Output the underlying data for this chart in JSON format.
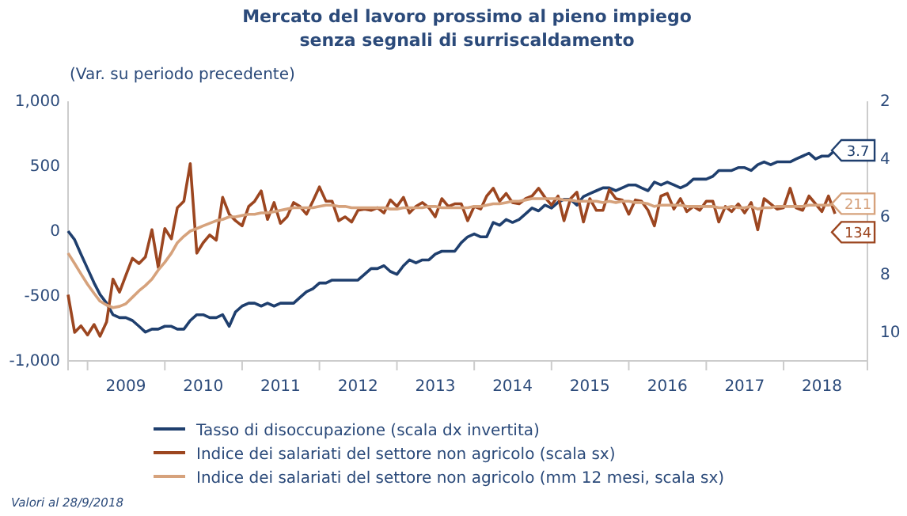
{
  "chart_data": {
    "type": "line",
    "title": "Mercato del lavoro prossimo al pieno impiego\nsenza segnali di surriscaldamento",
    "subtitle": "(Var. su periodo precedente)",
    "annotations": [
      "Valori al 28/9/2018"
    ],
    "xlim": [
      "2008-10",
      "2019-02"
    ],
    "xticks": [
      {
        "value": "2009-01",
        "label": null
      },
      {
        "value": "2009-07",
        "label": "2009"
      },
      {
        "value": "2010-01",
        "label": null
      },
      {
        "value": "2010-07",
        "label": "2010"
      },
      {
        "value": "2011-01",
        "label": null
      },
      {
        "value": "2011-07",
        "label": "2011"
      },
      {
        "value": "2012-01",
        "label": null
      },
      {
        "value": "2012-07",
        "label": "2012"
      },
      {
        "value": "2013-01",
        "label": null
      },
      {
        "value": "2013-07",
        "label": "2013"
      },
      {
        "value": "2014-01",
        "label": null
      },
      {
        "value": "2014-07",
        "label": "2014"
      },
      {
        "value": "2015-01",
        "label": null
      },
      {
        "value": "2015-07",
        "label": "2015"
      },
      {
        "value": "2016-01",
        "label": null
      },
      {
        "value": "2016-07",
        "label": "2016"
      },
      {
        "value": "2017-01",
        "label": null
      },
      {
        "value": "2017-07",
        "label": "2017"
      },
      {
        "value": "2018-01",
        "label": null
      },
      {
        "value": "2018-07",
        "label": "2018"
      }
    ],
    "ylim": [
      -1000,
      1000
    ],
    "yticks": [
      {
        "value": -1000,
        "label": "-1,000"
      },
      -500,
      0,
      500,
      {
        "value": 1000,
        "label": "1,000"
      }
    ],
    "y2lim": [
      11,
      2
    ],
    "y2ticks": [
      2,
      4,
      6,
      8,
      10
    ],
    "legend": "bottom",
    "series": [
      {
        "name": "Tasso di disoccupazione (scala dx invertita)",
        "color": "#1f3f6e",
        "axis": "y2",
        "values": [
          6.5,
          6.8,
          7.3,
          7.8,
          8.3,
          8.7,
          9.0,
          9.4,
          9.5,
          9.5,
          9.6,
          9.8,
          10.0,
          9.9,
          9.9,
          9.8,
          9.8,
          9.9,
          9.9,
          9.6,
          9.4,
          9.4,
          9.5,
          9.5,
          9.4,
          9.8,
          9.3,
          9.1,
          9.0,
          9.0,
          9.1,
          9.0,
          9.1,
          9.0,
          9.0,
          9.0,
          8.8,
          8.6,
          8.5,
          8.3,
          8.3,
          8.2,
          8.2,
          8.2,
          8.2,
          8.2,
          8.0,
          7.8,
          7.8,
          7.7,
          7.9,
          8.0,
          7.7,
          7.5,
          7.6,
          7.5,
          7.5,
          7.3,
          7.2,
          7.2,
          7.2,
          6.9,
          6.7,
          6.6,
          6.7,
          6.7,
          6.2,
          6.3,
          6.1,
          6.2,
          6.1,
          5.9,
          5.7,
          5.8,
          5.6,
          5.7,
          5.5,
          5.4,
          5.4,
          5.6,
          5.3,
          5.2,
          5.1,
          5.0,
          5.0,
          5.1,
          5.0,
          4.9,
          4.9,
          5.0,
          5.1,
          4.8,
          4.9,
          4.8,
          4.9,
          5.0,
          4.9,
          4.7,
          4.7,
          4.7,
          4.6,
          4.4,
          4.4,
          4.4,
          4.3,
          4.3,
          4.4,
          4.2,
          4.1,
          4.2,
          4.1,
          4.1,
          4.1,
          4.0,
          3.9,
          3.8,
          4.0,
          3.9,
          3.9,
          3.7
        ],
        "value_labels": [
          null,
          null,
          null,
          null,
          null,
          null,
          null,
          null,
          null,
          null,
          null,
          null,
          null,
          null,
          null,
          null,
          null,
          null,
          null,
          null,
          null,
          null,
          null,
          null,
          null,
          null,
          null,
          null,
          null,
          null,
          null,
          null,
          null,
          null,
          null,
          null,
          null,
          null,
          null,
          null,
          null,
          null,
          null,
          null,
          null,
          null,
          null,
          null,
          null,
          null,
          null,
          null,
          null,
          null,
          null,
          null,
          null,
          null,
          null,
          null,
          null,
          null,
          null,
          null,
          null,
          null,
          null,
          null,
          null,
          null,
          null,
          null,
          null,
          null,
          null,
          null,
          null,
          null,
          null,
          null,
          null,
          null,
          null,
          null,
          null,
          null,
          null,
          null,
          null,
          null,
          null,
          null,
          null,
          null,
          null,
          null,
          null,
          null,
          null,
          null,
          null,
          null,
          null,
          null,
          null,
          null,
          null,
          null,
          null,
          null,
          null,
          null,
          null,
          null,
          null,
          null,
          null,
          null,
          null,
          "3.7"
        ]
      },
      {
        "name": "Indice dei salariati del settore non agricolo (scala sx)",
        "color": "#9c4620",
        "values": [
          -490,
          -780,
          -730,
          -800,
          -720,
          -810,
          -700,
          -370,
          -470,
          -340,
          -210,
          -250,
          -200,
          10,
          -280,
          20,
          -60,
          180,
          230,
          520,
          -170,
          -90,
          -30,
          -70,
          260,
          130,
          80,
          40,
          190,
          230,
          310,
          90,
          220,
          60,
          110,
          220,
          190,
          130,
          230,
          340,
          230,
          230,
          80,
          110,
          70,
          160,
          170,
          160,
          180,
          140,
          240,
          190,
          260,
          140,
          190,
          220,
          180,
          110,
          250,
          190,
          210,
          210,
          80,
          190,
          170,
          270,
          330,
          230,
          290,
          220,
          210,
          250,
          270,
          330,
          260,
          200,
          270,
          80,
          250,
          300,
          70,
          250,
          160,
          160,
          320,
          250,
          240,
          130,
          240,
          230,
          160,
          40,
          270,
          290,
          170,
          250,
          150,
          190,
          160,
          230,
          230,
          70,
          190,
          150,
          210,
          140,
          220,
          10,
          250,
          210,
          170,
          180,
          330,
          180,
          160,
          270,
          210,
          150,
          270,
          134
        ],
        "value_labels": [
          null,
          null,
          null,
          null,
          null,
          null,
          null,
          null,
          null,
          null,
          null,
          null,
          null,
          null,
          null,
          null,
          null,
          null,
          null,
          null,
          null,
          null,
          null,
          null,
          null,
          null,
          null,
          null,
          null,
          null,
          null,
          null,
          null,
          null,
          null,
          null,
          null,
          null,
          null,
          null,
          null,
          null,
          null,
          null,
          null,
          null,
          null,
          null,
          null,
          null,
          null,
          null,
          null,
          null,
          null,
          null,
          null,
          null,
          null,
          null,
          null,
          null,
          null,
          null,
          null,
          null,
          null,
          null,
          null,
          null,
          null,
          null,
          null,
          null,
          null,
          null,
          null,
          null,
          null,
          null,
          null,
          null,
          null,
          null,
          null,
          null,
          null,
          null,
          null,
          null,
          null,
          null,
          null,
          null,
          null,
          null,
          null,
          null,
          null,
          null,
          null,
          null,
          null,
          null,
          null,
          null,
          null,
          null,
          null,
          null,
          null,
          null,
          null,
          null,
          null,
          null,
          null,
          null,
          null,
          "134"
        ]
      },
      {
        "name": "Indice dei salariati del settore non agricolo (mm 12 mesi, scala sx)",
        "color": "#d6a27c",
        "values": [
          -170,
          -250,
          -330,
          -410,
          -480,
          -540,
          -570,
          -590,
          -580,
          -560,
          -510,
          -460,
          -420,
          -370,
          -300,
          -240,
          -170,
          -90,
          -40,
          0,
          20,
          40,
          60,
          80,
          90,
          110,
          110,
          120,
          130,
          130,
          140,
          140,
          150,
          160,
          170,
          180,
          180,
          180,
          180,
          190,
          200,
          200,
          190,
          190,
          180,
          180,
          180,
          180,
          180,
          180,
          170,
          170,
          180,
          180,
          180,
          180,
          190,
          190,
          180,
          180,
          180,
          180,
          180,
          190,
          190,
          200,
          210,
          210,
          220,
          230,
          230,
          240,
          250,
          250,
          250,
          250,
          250,
          240,
          240,
          230,
          230,
          230,
          230,
          220,
          230,
          220,
          230,
          230,
          220,
          220,
          210,
          190,
          200,
          200,
          200,
          200,
          190,
          190,
          190,
          190,
          190,
          180,
          180,
          190,
          180,
          180,
          190,
          170,
          180,
          180,
          190,
          190,
          190,
          190,
          190,
          200,
          200,
          200,
          200,
          211
        ],
        "value_labels": [
          null,
          null,
          null,
          null,
          null,
          null,
          null,
          null,
          null,
          null,
          null,
          null,
          null,
          null,
          null,
          null,
          null,
          null,
          null,
          null,
          null,
          null,
          null,
          null,
          null,
          null,
          null,
          null,
          null,
          null,
          null,
          null,
          null,
          null,
          null,
          null,
          null,
          null,
          null,
          null,
          null,
          null,
          null,
          null,
          null,
          null,
          null,
          null,
          null,
          null,
          null,
          null,
          null,
          null,
          null,
          null,
          null,
          null,
          null,
          null,
          null,
          null,
          null,
          null,
          null,
          null,
          null,
          null,
          null,
          null,
          null,
          null,
          null,
          null,
          null,
          null,
          null,
          null,
          null,
          null,
          null,
          null,
          null,
          null,
          null,
          null,
          null,
          null,
          null,
          null,
          null,
          null,
          null,
          null,
          null,
          null,
          null,
          null,
          null,
          null,
          null,
          null,
          null,
          null,
          null,
          null,
          null,
          null,
          null,
          null,
          null,
          null,
          null,
          null,
          null,
          null,
          null,
          null,
          null,
          "211"
        ]
      }
    ],
    "x": [
      "2008-10",
      "2008-11",
      "2008-12",
      "2009-01",
      "2009-02",
      "2009-03",
      "2009-04",
      "2009-05",
      "2009-06",
      "2009-07",
      "2009-08",
      "2009-09",
      "2009-10",
      "2009-11",
      "2009-12",
      "2010-01",
      "2010-02",
      "2010-03",
      "2010-04",
      "2010-05",
      "2010-06",
      "2010-07",
      "2010-08",
      "2010-09",
      "2010-10",
      "2010-11",
      "2010-12",
      "2011-01",
      "2011-02",
      "2011-03",
      "2011-04",
      "2011-05",
      "2011-06",
      "2011-07",
      "2011-08",
      "2011-09",
      "2011-10",
      "2011-11",
      "2011-12",
      "2012-01",
      "2012-02",
      "2012-03",
      "2012-04",
      "2012-05",
      "2012-06",
      "2012-07",
      "2012-08",
      "2012-09",
      "2012-10",
      "2012-11",
      "2012-12",
      "2013-01",
      "2013-02",
      "2013-03",
      "2013-04",
      "2013-05",
      "2013-06",
      "2013-07",
      "2013-08",
      "2013-09",
      "2013-10",
      "2013-11",
      "2013-12",
      "2014-01",
      "2014-02",
      "2014-03",
      "2014-04",
      "2014-05",
      "2014-06",
      "2014-07",
      "2014-08",
      "2014-09",
      "2014-10",
      "2014-11",
      "2014-12",
      "2015-01",
      "2015-02",
      "2015-03",
      "2015-04",
      "2015-05",
      "2015-06",
      "2015-07",
      "2015-08",
      "2015-09",
      "2015-10",
      "2015-11",
      "2015-12",
      "2016-01",
      "2016-02",
      "2016-03",
      "2016-04",
      "2016-05",
      "2016-06",
      "2016-07",
      "2016-08",
      "2016-09",
      "2016-10",
      "2016-11",
      "2016-12",
      "2017-01",
      "2017-02",
      "2017-03",
      "2017-04",
      "2017-05",
      "2017-06",
      "2017-07",
      "2017-08",
      "2017-09",
      "2017-10",
      "2017-11",
      "2017-12",
      "2018-01",
      "2018-02",
      "2018-03",
      "2018-04",
      "2018-05",
      "2018-06",
      "2018-07",
      "2018-08",
      "2018-09"
    ]
  }
}
